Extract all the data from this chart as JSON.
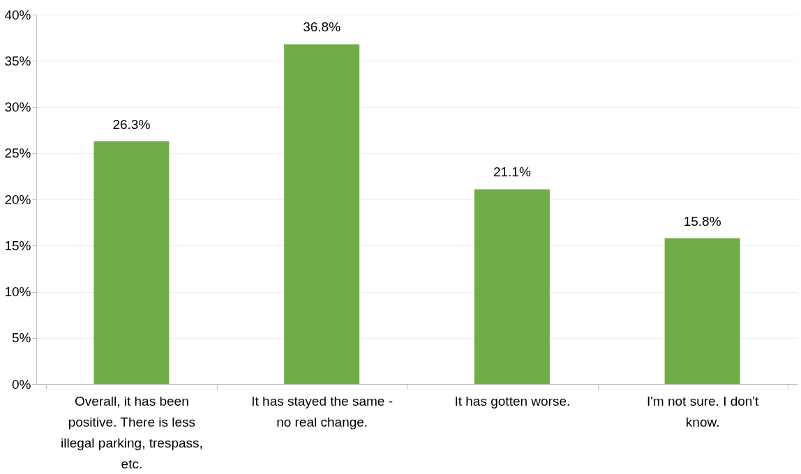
{
  "chart_data": {
    "type": "bar",
    "categories": [
      "Overall, it has been positive. There is less illegal parking, trespass, etc.",
      "It has stayed the same - no real change.",
      "It has gotten worse.",
      "I'm not sure. I don't know."
    ],
    "values": [
      26.3,
      36.8,
      21.1,
      15.8
    ],
    "value_labels": [
      "26.3%",
      "36.8%",
      "21.1%",
      "15.8%"
    ],
    "color": "#70ad47",
    "ylim": [
      0,
      40
    ],
    "yticks": [
      {
        "value": 0,
        "label": "0%"
      },
      {
        "value": 5,
        "label": "5%"
      },
      {
        "value": 10,
        "label": "10%"
      },
      {
        "value": 15,
        "label": "15%"
      },
      {
        "value": 20,
        "label": "20%"
      },
      {
        "value": 25,
        "label": "25%"
      },
      {
        "value": 30,
        "label": "30%"
      },
      {
        "value": 35,
        "label": "35%"
      },
      {
        "value": 40,
        "label": "40%"
      }
    ],
    "grid": "y"
  }
}
